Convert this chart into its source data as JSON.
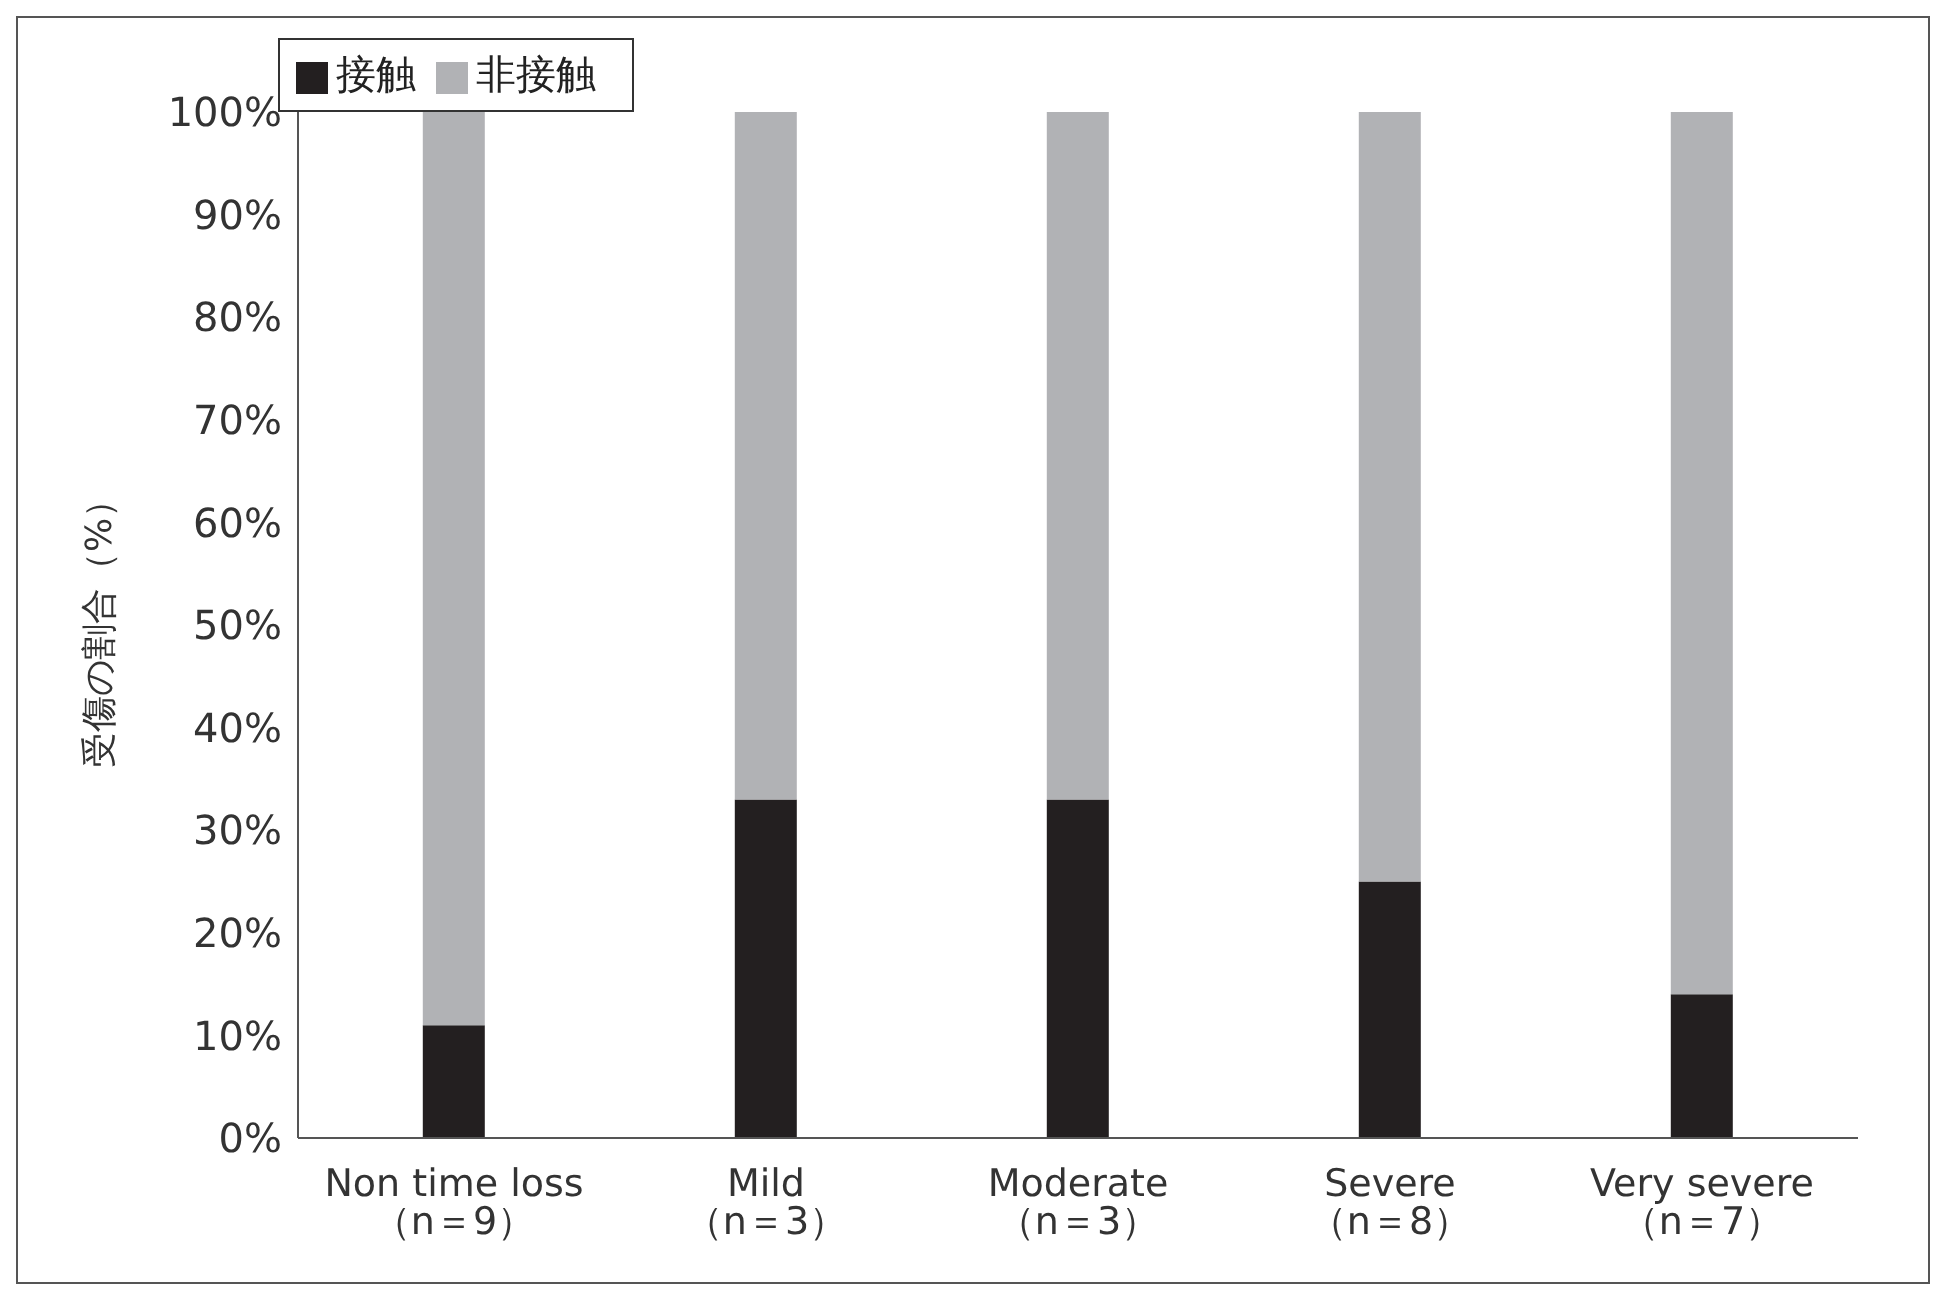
{
  "chart_data": {
    "type": "bar",
    "stacked": true,
    "ylabel": "受傷の割合（%）",
    "categories": [
      "Non time loss\n（n＝9）",
      "Mild\n（n＝3）",
      "Moderate\n（n＝3）",
      "Severe\n（n＝8）",
      "Very severe\n（n＝7）"
    ],
    "series": [
      {
        "name": "接触",
        "color": "#231f20",
        "values": [
          11,
          33,
          33,
          25,
          14
        ]
      },
      {
        "name": "非接触",
        "color": "#b1b2b5",
        "values": [
          89,
          67,
          67,
          75,
          86
        ]
      }
    ],
    "ylim": [
      0,
      100
    ],
    "yticks": [
      {
        "value": 0,
        "label": "0%"
      },
      {
        "value": 10,
        "label": "10%"
      },
      {
        "value": 20,
        "label": "20%"
      },
      {
        "value": 30,
        "label": "30%"
      },
      {
        "value": 40,
        "label": "40%"
      },
      {
        "value": 50,
        "label": "50%"
      },
      {
        "value": 60,
        "label": "60%"
      },
      {
        "value": 70,
        "label": "70%"
      },
      {
        "value": 80,
        "label": "80%"
      },
      {
        "value": 90,
        "label": "90%"
      },
      {
        "value": 100,
        "label": "100%"
      }
    ],
    "grid": false,
    "legend": "top left"
  }
}
